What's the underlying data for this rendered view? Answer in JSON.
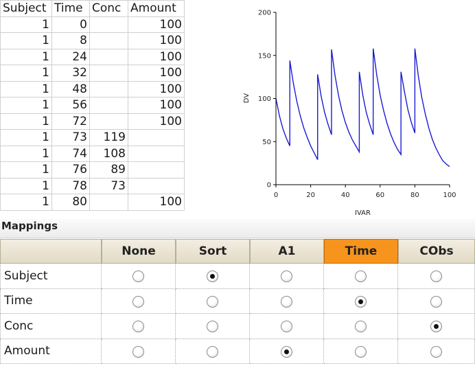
{
  "grid": {
    "columns": [
      "Subject",
      "Time",
      "Conc",
      "Amount"
    ],
    "rows": [
      [
        "1",
        "0",
        "",
        "100"
      ],
      [
        "1",
        "8",
        "",
        "100"
      ],
      [
        "1",
        "24",
        "",
        "100"
      ],
      [
        "1",
        "32",
        "",
        "100"
      ],
      [
        "1",
        "48",
        "",
        "100"
      ],
      [
        "1",
        "56",
        "",
        "100"
      ],
      [
        "1",
        "72",
        "",
        "100"
      ],
      [
        "1",
        "73",
        "119",
        ""
      ],
      [
        "1",
        "74",
        "108",
        ""
      ],
      [
        "1",
        "76",
        "89",
        ""
      ],
      [
        "1",
        "78",
        "73",
        ""
      ],
      [
        "1",
        "80",
        "",
        "100"
      ]
    ]
  },
  "chart_data": {
    "type": "line",
    "xlabel": "IVAR",
    "ylabel": "DV",
    "xlim": [
      0,
      100
    ],
    "ylim": [
      0,
      200
    ],
    "xticks": [
      "0",
      "20",
      "40",
      "60",
      "80",
      "100"
    ],
    "yticks": [
      "0",
      "50",
      "100",
      "150",
      "200"
    ],
    "grid": false,
    "color": "#1a1ad6",
    "series": [
      {
        "x": [
          0,
          2,
          4,
          6,
          8,
          8,
          10,
          12,
          14,
          16,
          18,
          20,
          22,
          24,
          24,
          26,
          28,
          30,
          32,
          32,
          34,
          36,
          38,
          40,
          42,
          44,
          46,
          48,
          48,
          50,
          52,
          54,
          56,
          56,
          58,
          60,
          62,
          64,
          66,
          68,
          70,
          72,
          72,
          74,
          76,
          78,
          80,
          80,
          82,
          84,
          86,
          88,
          90,
          92,
          94,
          96,
          98,
          100
        ],
        "y": [
          100,
          80,
          65,
          54,
          45,
          144,
          118,
          97,
          80,
          66,
          55,
          45,
          37,
          29,
          128,
          103,
          84,
          70,
          58,
          157,
          127,
          104,
          86,
          72,
          61,
          52,
          45,
          38,
          131,
          104,
          84,
          70,
          58,
          158,
          128,
          104,
          86,
          71,
          59,
          49,
          41,
          35,
          131,
          108,
          87,
          72,
          60,
          158,
          126,
          101,
          82,
          66,
          53,
          43,
          35,
          28,
          24,
          21
        ]
      }
    ]
  },
  "mappings": {
    "title": "Mappings",
    "columns": [
      {
        "label": "None",
        "selected": false
      },
      {
        "label": "Sort",
        "selected": false
      },
      {
        "label": "A1",
        "selected": false
      },
      {
        "label": "Time",
        "selected": true
      },
      {
        "label": "CObs",
        "selected": false
      }
    ],
    "rows": [
      {
        "label": "Subject",
        "checked": 1
      },
      {
        "label": "Time",
        "checked": 3
      },
      {
        "label": "Conc",
        "checked": 4
      },
      {
        "label": "Amount",
        "checked": 2
      }
    ],
    "highlight_color": "#f7941d"
  }
}
